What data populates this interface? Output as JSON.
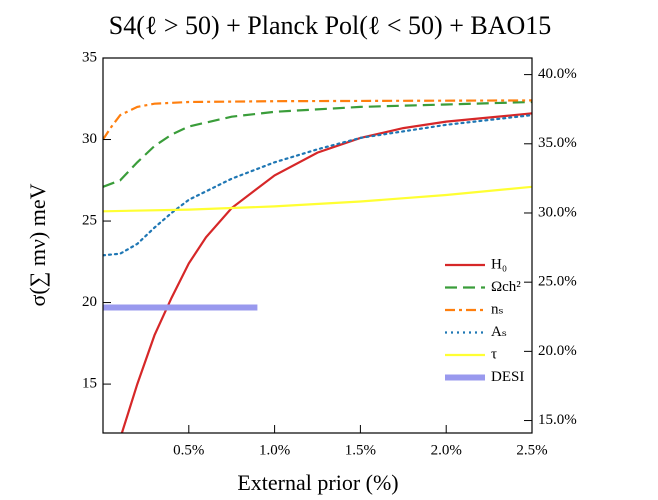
{
  "chart_data": {
    "type": "line",
    "title": "S4(ℓ > 50)  +  Planck Pol(ℓ < 50) +  BAO15",
    "xlabel": "External prior (%)",
    "ylabel": "σ(∑ mν) meV",
    "xlim": [
      0,
      2.5
    ],
    "xticks": [
      {
        "value": 0.5,
        "label": "0.5%"
      },
      {
        "value": 1.0,
        "label": "1.0%"
      },
      {
        "value": 1.5,
        "label": "1.5%"
      },
      {
        "value": 2.0,
        "label": "2.0%"
      },
      {
        "value": 2.5,
        "label": "2.5%"
      }
    ],
    "ylim": [
      12,
      35
    ],
    "yticks": [
      15,
      20,
      25,
      30,
      35
    ],
    "y2lim": [
      14.1,
      41.2
    ],
    "y2ticks": [
      {
        "value": 15,
        "label": "15.0%"
      },
      {
        "value": 20,
        "label": "20.0%"
      },
      {
        "value": 25,
        "label": "25.0%"
      },
      {
        "value": 30,
        "label": "30.0%"
      },
      {
        "value": 35,
        "label": "35.0%"
      },
      {
        "value": 40,
        "label": "40.0%"
      }
    ],
    "legend": "lower right",
    "series": [
      {
        "name": "H₀",
        "color": "#d62728",
        "dash": "solid",
        "x": [
          0.11,
          0.2,
          0.3,
          0.4,
          0.5,
          0.6,
          0.75,
          1.0,
          1.25,
          1.5,
          1.75,
          2.0,
          2.25,
          2.5
        ],
        "values": [
          12,
          15,
          18,
          20.3,
          22.4,
          24,
          25.8,
          27.8,
          29.2,
          30.1,
          30.7,
          31.1,
          31.35,
          31.6
        ]
      },
      {
        "name": "Ωch²",
        "color": "#3a9d3a",
        "dash": "dashed",
        "x": [
          0,
          0.1,
          0.2,
          0.3,
          0.4,
          0.5,
          0.75,
          1.0,
          1.5,
          2.0,
          2.5
        ],
        "values": [
          27.1,
          27.5,
          28.6,
          29.6,
          30.3,
          30.8,
          31.4,
          31.7,
          32.0,
          32.15,
          32.3
        ]
      },
      {
        "name": "nₛ",
        "color": "#ff7f0e",
        "dash": "dashdot",
        "x": [
          0,
          0.05,
          0.1,
          0.2,
          0.3,
          0.5,
          1.0,
          2.5
        ],
        "values": [
          30,
          30.8,
          31.5,
          32,
          32.2,
          32.3,
          32.35,
          32.4
        ]
      },
      {
        "name": "Aₛ",
        "color": "#1f77b4",
        "dash": "dotted",
        "x": [
          0,
          0.1,
          0.2,
          0.3,
          0.4,
          0.5,
          0.75,
          1.0,
          1.25,
          1.5,
          2.0,
          2.5
        ],
        "values": [
          22.9,
          23,
          23.6,
          24.6,
          25.5,
          26.3,
          27.6,
          28.6,
          29.4,
          30.1,
          30.9,
          31.5
        ]
      },
      {
        "name": "τ",
        "color": "#ffff33",
        "dash": "solid",
        "x": [
          0,
          0.5,
          1.0,
          1.5,
          2.0,
          2.5
        ],
        "values": [
          25.6,
          25.7,
          25.9,
          26.2,
          26.6,
          27.1
        ]
      },
      {
        "name": "DESI",
        "color": "#9999ee",
        "dash": "thick",
        "x": [
          0,
          0.9
        ],
        "values": [
          19.7,
          19.7
        ]
      }
    ]
  }
}
